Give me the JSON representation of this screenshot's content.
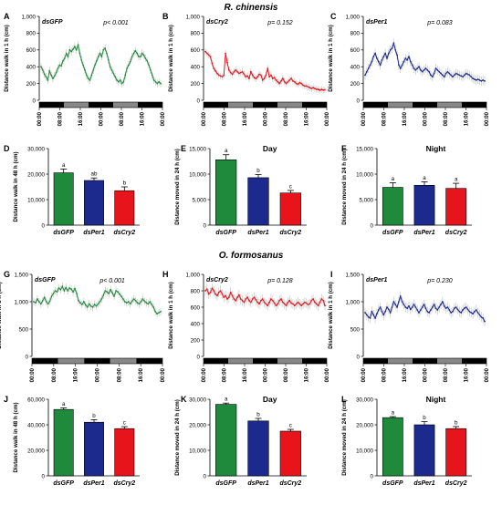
{
  "figure": {
    "section_titles": [
      "R. chinensis",
      "O. formosanus"
    ],
    "colors": {
      "green": "#1f8a3c",
      "red": "#e8141c",
      "navy": "#1b2a8c",
      "grey": "#888888",
      "black": "#000000",
      "light_grey": "#bdbdbd"
    }
  },
  "chart_data": [
    {
      "panel": "A",
      "type": "line",
      "label": "dsGFP",
      "p_text": "p< 0.001",
      "color": "green",
      "ylabel": "Distance walk in 1 h (cm)",
      "yticks": [
        "0",
        "200",
        "400",
        "600",
        "800",
        "1,000"
      ],
      "ylim": [
        0,
        1000
      ],
      "xticks": [
        "00:00",
        "08:00",
        "16:00",
        "00:00",
        "08:00",
        "16:00",
        "00:00"
      ],
      "lightbar": [
        "black",
        "grey",
        "black",
        "grey",
        "black"
      ],
      "values": [
        400,
        360,
        310,
        280,
        240,
        350,
        300,
        260,
        290,
        330,
        380,
        420,
        410,
        470,
        500,
        560,
        520,
        600,
        580,
        610,
        640,
        600,
        660,
        560,
        480,
        420,
        360,
        300,
        260,
        240,
        300,
        360,
        420,
        470,
        520,
        560,
        520,
        600,
        620,
        560,
        480,
        400,
        360,
        320,
        280,
        240,
        220,
        240,
        200,
        220,
        300,
        380,
        420,
        460,
        520,
        560,
        590,
        560,
        520,
        520,
        560,
        540,
        500,
        470,
        420,
        360,
        300,
        240,
        220,
        200,
        220,
        200
      ],
      "errors": 45
    },
    {
      "panel": "B",
      "type": "line",
      "label": "dsCry2",
      "p_text": "p= 0.152",
      "color": "red",
      "ylabel": "Distance walk in 1 h (cm)",
      "yticks": [
        "0",
        "200",
        "400",
        "600",
        "800",
        "1,000"
      ],
      "ylim": [
        0,
        1000
      ],
      "xticks": [
        "00:00",
        "08:00",
        "16:00",
        "00:00",
        "08:00",
        "16:00",
        "00:00"
      ],
      "lightbar": [
        "black",
        "grey",
        "black",
        "grey",
        "black"
      ],
      "values": [
        580,
        560,
        540,
        520,
        440,
        380,
        350,
        320,
        300,
        290,
        280,
        300,
        560,
        450,
        360,
        330,
        310,
        340,
        360,
        340,
        320,
        330,
        340,
        310,
        280,
        290,
        260,
        340,
        300,
        270,
        260,
        280,
        310,
        300,
        240,
        260,
        300,
        380,
        280,
        300,
        260,
        270,
        240,
        220,
        200,
        230,
        260,
        220,
        200,
        220,
        240,
        260,
        230,
        220,
        200,
        190,
        210,
        200,
        180,
        170,
        170,
        160,
        150,
        140,
        150,
        140,
        130,
        130,
        120,
        130,
        120,
        125
      ],
      "errors": 40
    },
    {
      "panel": "C",
      "type": "line",
      "label": "dsPer1",
      "p_text": "p= 0.083",
      "color": "navy",
      "ylabel": "Distance walk in 1 h (cm)",
      "yticks": [
        "0",
        "200",
        "400",
        "600",
        "800",
        "1,000"
      ],
      "ylim": [
        0,
        1000
      ],
      "xticks": [
        "00:00",
        "08:00",
        "16:00",
        "00:00",
        "08:00",
        "16:00",
        "00:00"
      ],
      "lightbar": [
        "black",
        "grey",
        "black",
        "grey",
        "black"
      ],
      "values": [
        300,
        340,
        380,
        420,
        460,
        520,
        560,
        500,
        460,
        420,
        480,
        520,
        560,
        500,
        560,
        600,
        620,
        680,
        600,
        540,
        420,
        380,
        420,
        460,
        500,
        480,
        520,
        460,
        420,
        380,
        360,
        380,
        400,
        360,
        340,
        360,
        380,
        360,
        340,
        300,
        280,
        320,
        380,
        360,
        340,
        320,
        300,
        280,
        320,
        340,
        320,
        300,
        280,
        300,
        320,
        310,
        300,
        290,
        280,
        300,
        320,
        310,
        300,
        280,
        260,
        250,
        240,
        250,
        240,
        230,
        240,
        230
      ],
      "errors": 55
    },
    {
      "panel": "D",
      "type": "bar",
      "ylabel": "Distance walk in 48 h (cm)",
      "yticks": [
        "0",
        "10,000",
        "20,000",
        "30,000"
      ],
      "ylim": [
        0,
        30000
      ],
      "categories": [
        "dsGFP",
        "dsPer1",
        "dsCry2"
      ],
      "values": [
        20500,
        17500,
        13500
      ],
      "errors": [
        1500,
        1000,
        1500
      ],
      "letters": [
        "a",
        "ab",
        "b"
      ],
      "colors": [
        "green",
        "navy",
        "red"
      ]
    },
    {
      "panel": "E",
      "type": "bar",
      "title": "Day",
      "ylabel": "Distance moved in 24 h (cm)",
      "yticks": [
        "0",
        "5,000",
        "10,000",
        "15,000"
      ],
      "ylim": [
        0,
        15000
      ],
      "categories": [
        "dsGFP",
        "dsPer1",
        "dsCry2"
      ],
      "values": [
        12800,
        9300,
        6300
      ],
      "errors": [
        1000,
        600,
        500
      ],
      "letters": [
        "a",
        "b",
        "c"
      ],
      "colors": [
        "green",
        "navy",
        "red"
      ]
    },
    {
      "panel": "F",
      "type": "bar",
      "title": "Night",
      "ylabel": "Distance moved in 24 h (cm)",
      "yticks": [
        "0",
        "5,000",
        "10,000",
        "15,000"
      ],
      "ylim": [
        0,
        15000
      ],
      "categories": [
        "dsGFP",
        "dsPer1",
        "dsCry2"
      ],
      "values": [
        7400,
        7800,
        7200
      ],
      "errors": [
        900,
        700,
        1000
      ],
      "letters": [
        "a",
        "a",
        "a"
      ],
      "colors": [
        "green",
        "navy",
        "red"
      ]
    },
    {
      "panel": "G",
      "type": "line",
      "label": "dsGFP",
      "p_text": "p< 0.001",
      "color": "green",
      "ylabel": "Distance walk in 1 h (cm)",
      "yticks": [
        "0",
        "500",
        "1,000",
        "1,500"
      ],
      "ylim": [
        0,
        1500
      ],
      "xticks": [
        "00:00",
        "08:00",
        "16:00",
        "00:00",
        "08:00",
        "16:00",
        "00:00"
      ],
      "lightbar": [
        "black",
        "grey",
        "black",
        "grey",
        "black"
      ],
      "values": [
        1000,
        980,
        1050,
        1000,
        960,
        1020,
        1080,
        1000,
        960,
        1010,
        1100,
        1150,
        1200,
        1180,
        1250,
        1220,
        1280,
        1200,
        1260,
        1200,
        1250,
        1230,
        1180,
        1240,
        1150,
        1020,
        980,
        950,
        1000,
        940,
        900,
        960,
        920,
        900,
        950,
        920,
        960,
        1000,
        1050,
        1120,
        1200,
        1180,
        1150,
        1220,
        1160,
        1100,
        1200,
        1180,
        1140,
        1100,
        1050,
        1000,
        980,
        1000,
        960,
        1010,
        1050,
        1020,
        980,
        960,
        1000,
        1050,
        1010,
        980,
        960,
        1000,
        950,
        900,
        820,
        780,
        800,
        820
      ],
      "errors": 70
    },
    {
      "panel": "H",
      "type": "line",
      "label": "dsCry2",
      "p_text": "p= 0.128",
      "color": "red",
      "ylabel": "Distance walk in 1 h (cm)",
      "yticks": [
        "0",
        "200",
        "400",
        "600",
        "800",
        "1,000"
      ],
      "ylim": [
        0,
        1000
      ],
      "xticks": [
        "00:00",
        "08:00",
        "16:00",
        "00:00",
        "08:00",
        "16:00",
        "00:00"
      ],
      "lightbar": [
        "black",
        "grey",
        "black",
        "grey",
        "black"
      ],
      "values": [
        800,
        820,
        760,
        780,
        830,
        800,
        760,
        740,
        780,
        800,
        760,
        720,
        740,
        700,
        720,
        780,
        740,
        700,
        680,
        720,
        750,
        700,
        680,
        660,
        700,
        720,
        680,
        660,
        700,
        720,
        690,
        660,
        640,
        680,
        700,
        660,
        640,
        620,
        660,
        700,
        680,
        650,
        620,
        640,
        680,
        700,
        660,
        640,
        620,
        660,
        680,
        650,
        640,
        620,
        640,
        660,
        640,
        620,
        640,
        660,
        650,
        630,
        640,
        680,
        700,
        660,
        640,
        620,
        660,
        700,
        680,
        620
      ],
      "errors": 60
    },
    {
      "panel": "I",
      "type": "line",
      "label": "dsPer1",
      "p_text": "p= 0.230",
      "color": "navy",
      "ylabel": "Distance walk in 1 h (cm)",
      "yticks": [
        "0",
        "500",
        "1,000",
        "1,500"
      ],
      "ylim": [
        0,
        1500
      ],
      "xticks": [
        "00:00",
        "08:00",
        "16:00",
        "00:00",
        "08:00",
        "16:00",
        "00:00"
      ],
      "lightbar": [
        "black",
        "grey",
        "black",
        "grey",
        "black"
      ],
      "values": [
        800,
        760,
        720,
        700,
        820,
        760,
        700,
        780,
        850,
        900,
        820,
        760,
        820,
        900,
        860,
        800,
        900,
        1000,
        950,
        900,
        1000,
        1100,
        1000,
        950,
        900,
        880,
        920,
        860,
        900,
        950,
        900,
        850,
        800,
        850,
        900,
        950,
        880,
        820,
        800,
        850,
        900,
        950,
        880,
        850,
        900,
        950,
        1000,
        920,
        880,
        900,
        850,
        800,
        820,
        880,
        900,
        860,
        820,
        800,
        850,
        880,
        900,
        860,
        820,
        800,
        780,
        820,
        850,
        800,
        760,
        720,
        700,
        640
      ],
      "errors": 90
    },
    {
      "panel": "J",
      "type": "bar",
      "ylabel": "Distance walk in 48 h (cm)",
      "yticks": [
        "0",
        "20,000",
        "40,000",
        "60,000"
      ],
      "ylim": [
        0,
        60000
      ],
      "categories": [
        "dsGFP",
        "dsPer1",
        "dsCry2"
      ],
      "values": [
        52000,
        42000,
        37000
      ],
      "errors": [
        1200,
        2000,
        1500
      ],
      "letters": [
        "a",
        "b",
        "c"
      ],
      "colors": [
        "green",
        "navy",
        "red"
      ]
    },
    {
      "panel": "K",
      "type": "bar",
      "title": "Day",
      "ylabel": "Distance moved in 24 h (cm)",
      "yticks": [
        "0",
        "10,000",
        "20,000",
        "30,000"
      ],
      "ylim": [
        0,
        30000
      ],
      "categories": [
        "dsGFP",
        "dsPer1",
        "dsCry2"
      ],
      "values": [
        28000,
        21500,
        17500
      ],
      "errors": [
        500,
        1000,
        700
      ],
      "letters": [
        "a",
        "b",
        "c"
      ],
      "colors": [
        "green",
        "navy",
        "red"
      ]
    },
    {
      "panel": "L",
      "type": "bar",
      "title": "Night",
      "ylabel": "Distance moved in 24 h (cm)",
      "yticks": [
        "0",
        "10,000",
        "20,000",
        "30,000"
      ],
      "ylim": [
        0,
        30000
      ],
      "categories": [
        "dsGFP",
        "dsPer1",
        "dsCry2"
      ],
      "values": [
        22800,
        20000,
        18500
      ],
      "errors": [
        400,
        1200,
        800
      ],
      "letters": [
        "a",
        "b",
        "b"
      ],
      "colors": [
        "green",
        "navy",
        "red"
      ]
    }
  ]
}
